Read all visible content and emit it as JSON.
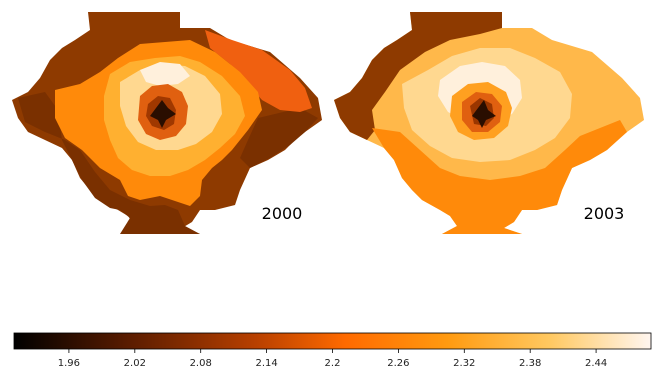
{
  "maps": [
    {
      "year_label": "2000"
    },
    {
      "year_label": "2003"
    }
  ],
  "colorbar": {
    "colormap": "black-orange-white",
    "colors": [
      "#000000",
      "#5a1c00",
      "#b84000",
      "#ff6a00",
      "#ff9a10",
      "#ffc860",
      "#fff6f0"
    ],
    "min": 1.91,
    "max": 2.49,
    "ticks": [
      "1.96",
      "2.02",
      "2.08",
      "2.14",
      "2.2",
      "2.26",
      "2.32",
      "2.38",
      "2.44"
    ]
  },
  "chart_data": {
    "type": "heatmap",
    "panels": [
      "2000",
      "2003"
    ],
    "colorbar_range": [
      1.91,
      2.49
    ],
    "colorbar_ticks": [
      1.96,
      2.02,
      2.08,
      2.14,
      2.2,
      2.26,
      2.32,
      2.38,
      2.44
    ]
  }
}
